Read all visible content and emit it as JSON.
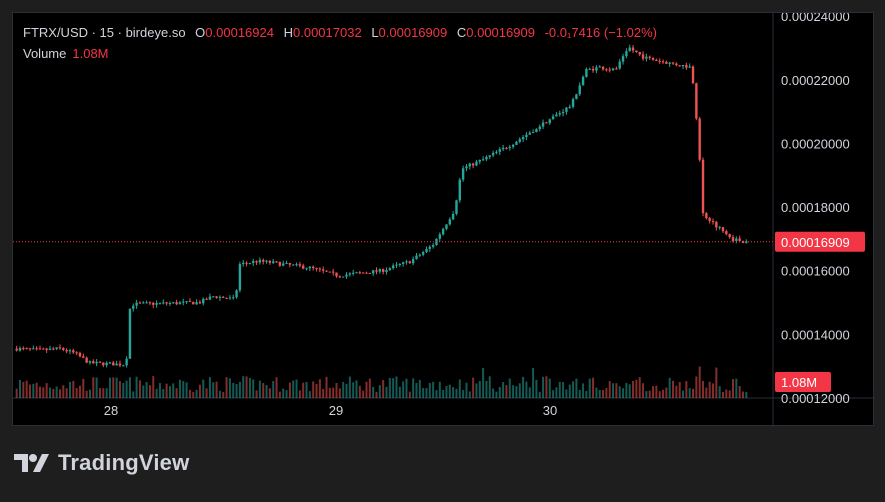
{
  "legend": {
    "symbol": "FTRX/USD · 15 · birdeye.so",
    "o_label": "O",
    "o_value": "0.00016924",
    "h_label": "H",
    "h_value": "0.00017032",
    "l_label": "L",
    "l_value": "0.00016909",
    "c_label": "C",
    "c_value": "0.00016909",
    "change": "-0.0₁7416 (−1.02%)",
    "volume_label": "Volume",
    "volume_value": "1.08M"
  },
  "branding": {
    "logo_text": "TradingView"
  },
  "colors": {
    "up": "#26a69a",
    "down": "#ef5350",
    "price_tag": "#f23645",
    "axis_text": "#d1d4dc"
  },
  "chart_data": {
    "type": "candlestick",
    "y_axis": {
      "ticks": [
        "0.00024000",
        "0.00022000",
        "0.00020000",
        "0.00018000",
        "0.00016000",
        "0.00014000",
        "0.00012000"
      ],
      "ylim": [
        0.00012,
        0.000241
      ]
    },
    "x_axis": {
      "ticks": [
        "28",
        "29",
        "30"
      ]
    },
    "current_price": "0.00016909",
    "current_volume": "1.08M",
    "price_path": [
      [
        0,
        0.0001355
      ],
      [
        0.03,
        0.000135
      ],
      [
        0.06,
        0.0001355
      ],
      [
        0.08,
        0.000134
      ],
      [
        0.1,
        0.000131
      ],
      [
        0.15,
        0.0001305
      ],
      [
        0.155,
        0.000148
      ],
      [
        0.16,
        0.0001495
      ],
      [
        0.25,
        0.00015
      ],
      [
        0.27,
        0.000152
      ],
      [
        0.3,
        0.000151
      ],
      [
        0.305,
        0.000162
      ],
      [
        0.33,
        0.000163
      ],
      [
        0.35,
        0.0001625
      ],
      [
        0.4,
        0.000161
      ],
      [
        0.44,
        0.0001585
      ],
      [
        0.5,
        0.00016
      ],
      [
        0.54,
        0.000163
      ],
      [
        0.57,
        0.000168
      ],
      [
        0.6,
        0.000179
      ],
      [
        0.61,
        0.000192
      ],
      [
        0.64,
        0.000195
      ],
      [
        0.68,
        0.0002
      ],
      [
        0.72,
        0.000206
      ],
      [
        0.76,
        0.000212
      ],
      [
        0.78,
        0.000223
      ],
      [
        0.8,
        0.000224
      ],
      [
        0.82,
        0.000223
      ],
      [
        0.84,
        0.00023
      ],
      [
        0.86,
        0.000227
      ],
      [
        0.9,
        0.000225
      ],
      [
        0.925,
        0.000224
      ],
      [
        0.935,
        0.0002
      ],
      [
        0.94,
        0.000178
      ],
      [
        0.96,
        0.000174
      ],
      [
        0.98,
        0.00017
      ],
      [
        1.0,
        0.0001691
      ]
    ],
    "candle_count": 220
  }
}
